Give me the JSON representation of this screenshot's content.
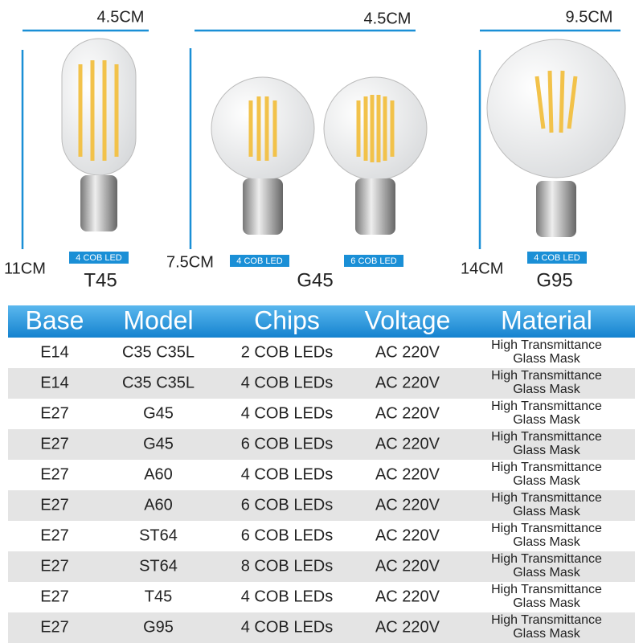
{
  "bulbs": [
    {
      "width": "4.5CM",
      "height": "11CM",
      "chips": [
        "4 COB LED"
      ],
      "model": "T45"
    },
    {
      "width": "4.5CM",
      "height": "7.5CM",
      "chips": [
        "4 COB LED",
        "6 COB LED"
      ],
      "model": "G45"
    },
    {
      "width": "9.5CM",
      "height": "14CM",
      "chips": [
        "4 COB LED"
      ],
      "model": "G95"
    }
  ],
  "table": {
    "header": [
      "Base",
      "Model",
      "Chips",
      "Voltage",
      "Material"
    ],
    "rows": [
      [
        "E14",
        "C35 C35L",
        "2 COB LEDs",
        "AC 220V",
        [
          "High Transmittance",
          "Glass Mask"
        ]
      ],
      [
        "E14",
        "C35 C35L",
        "4 COB LEDs",
        "AC 220V",
        [
          "High Transmittance",
          "Glass Mask"
        ]
      ],
      [
        "E27",
        "G45",
        "4 COB LEDs",
        "AC 220V",
        [
          "High Transmittance",
          "Glass Mask"
        ]
      ],
      [
        "E27",
        "G45",
        "6 COB LEDs",
        "AC 220V",
        [
          "High Transmittance",
          "Glass Mask"
        ]
      ],
      [
        "E27",
        "A60",
        "4 COB LEDs",
        "AC 220V",
        [
          "High Transmittance",
          "Glass Mask"
        ]
      ],
      [
        "E27",
        "A60",
        "6 COB LEDs",
        "AC 220V",
        [
          "High Transmittance",
          "Glass Mask"
        ]
      ],
      [
        "E27",
        "ST64",
        "6 COB LEDs",
        "AC 220V",
        [
          "High Transmittance",
          "Glass Mask"
        ]
      ],
      [
        "E27",
        "ST64",
        "8 COB LEDs",
        "AC 220V",
        [
          "High Transmittance",
          "Glass Mask"
        ]
      ],
      [
        "E27",
        "T45",
        "4 COB LEDs",
        "AC 220V",
        [
          "High Transmittance",
          "Glass Mask"
        ]
      ],
      [
        "E27",
        "G95",
        "4 COB LEDs",
        "AC 220V",
        [
          "High Transmittance",
          "Glass Mask"
        ]
      ]
    ]
  }
}
